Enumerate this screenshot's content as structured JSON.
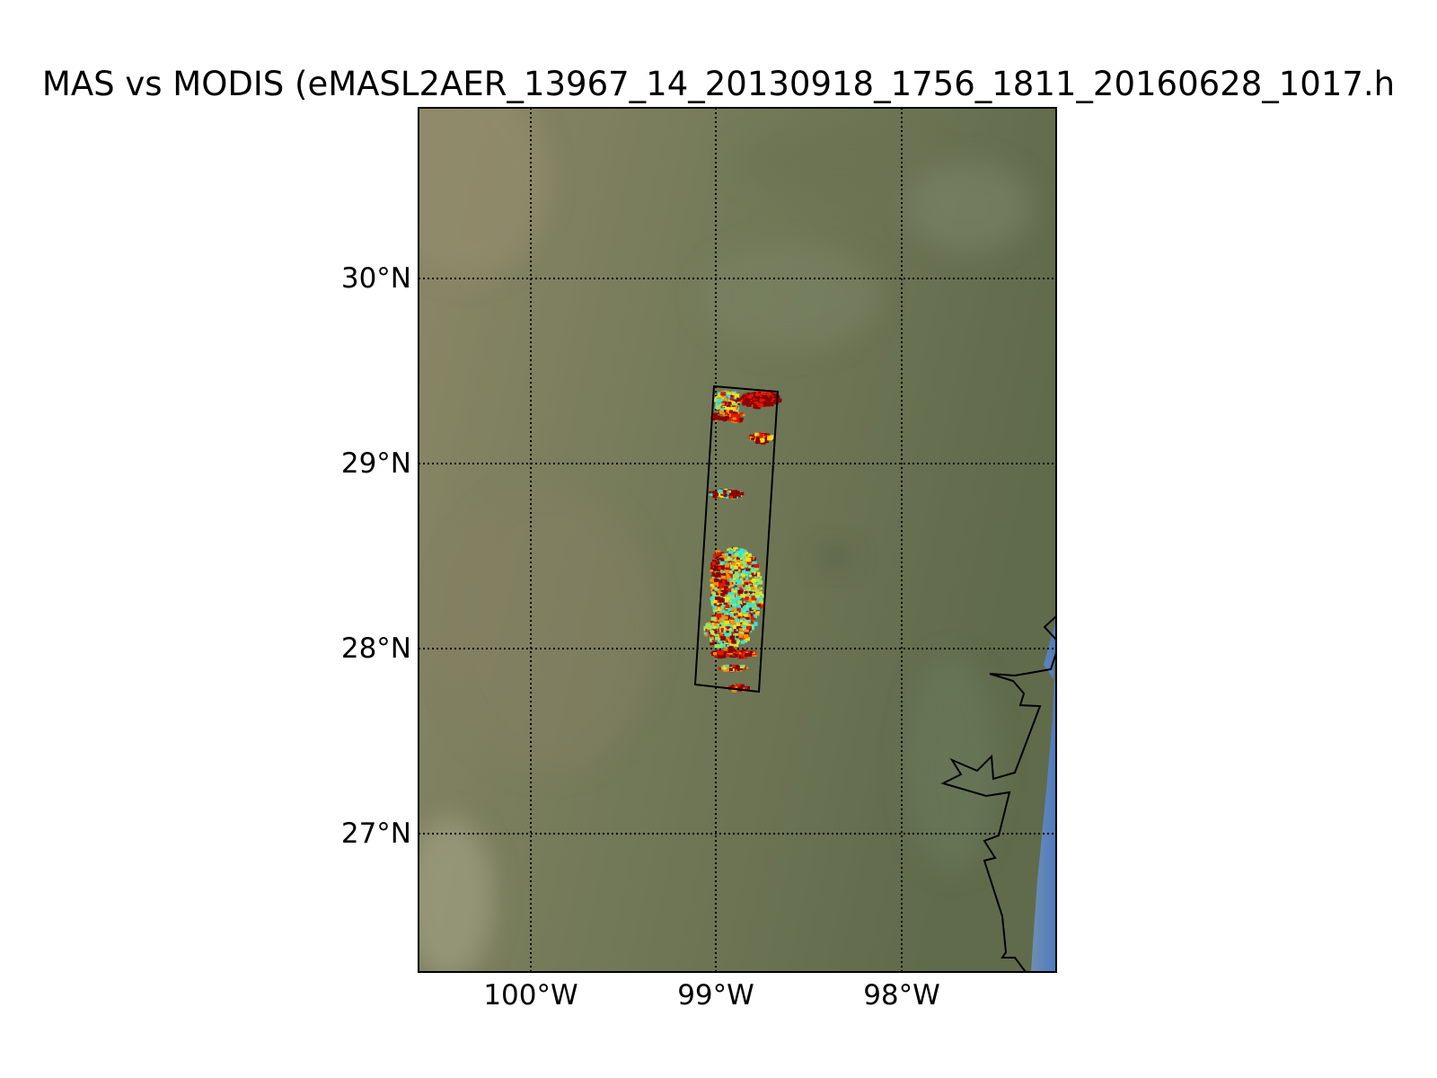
{
  "title": "MAS vs MODIS (eMASL2AER_13967_14_20130918_1756_1811_20160628_1017.h",
  "map": {
    "lat_labels": [
      "30°N",
      "29°N",
      "28°N",
      "27°N"
    ],
    "lon_labels": [
      "100°W",
      "99°W",
      "98°W"
    ],
    "gridlines": true,
    "gridline_style": "dotted",
    "background": "satellite imagery",
    "colors": {
      "land_light": "#8a8a68",
      "land_mid": "#717a58",
      "land_dark": "#5f6a4a",
      "water": "#5a82b8",
      "data_dark_red": "#8b0000",
      "data_red": "#dd1a00",
      "data_orange": "#ff8c00",
      "data_yellow": "#f0e020",
      "data_green": "#9ae26a",
      "data_cyan": "#33e6d6"
    }
  }
}
